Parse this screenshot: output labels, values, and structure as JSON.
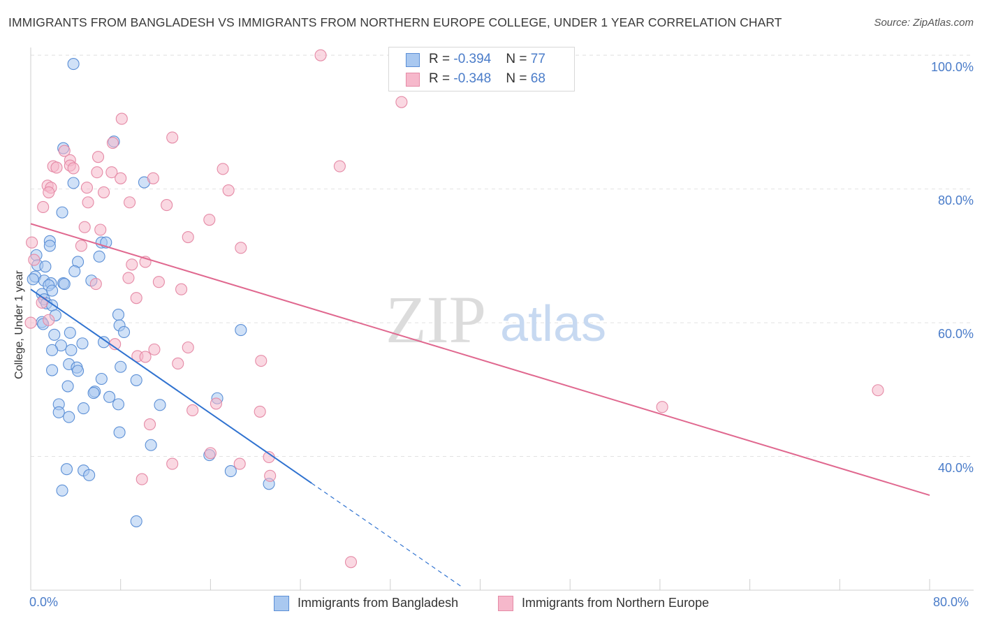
{
  "header": {
    "title": "IMMIGRANTS FROM BANGLADESH VS IMMIGRANTS FROM NORTHERN EUROPE COLLEGE, UNDER 1 YEAR CORRELATION CHART",
    "source": "Source: ZipAtlas.com"
  },
  "legend_top": {
    "rows": [
      {
        "r_label": "R = ",
        "r_value": "-0.394",
        "n_label": "N = ",
        "n_value": "77"
      },
      {
        "r_label": "R = ",
        "r_value": "-0.348",
        "n_label": "N = ",
        "n_value": "68"
      }
    ]
  },
  "watermark": {
    "zip": "ZIP",
    "atlas": "atlas"
  },
  "colors": {
    "blue_fill": "#a9c8f0",
    "blue_stroke": "#5b8fd6",
    "blue_line": "#2f72d0",
    "pink_fill": "#f6b8cb",
    "pink_stroke": "#e58aa6",
    "pink_line": "#e0688f",
    "tick_text": "#4a7cc9",
    "grid": "#e2e2e2"
  },
  "chart_data": {
    "type": "scatter",
    "title": "IMMIGRANTS FROM BANGLADESH VS IMMIGRANTS FROM NORTHERN EUROPE COLLEGE, UNDER 1 YEAR CORRELATION CHART",
    "xlabel": "",
    "ylabel": "College, Under 1 year",
    "xlim": [
      0,
      80
    ],
    "ylim": [
      20,
      102
    ],
    "x_tick_labels": [
      "0.0%",
      "80.0%"
    ],
    "y_tick_labels": [
      "40.0%",
      "60.0%",
      "80.0%",
      "100.0%"
    ],
    "y_ticks": [
      40,
      60,
      80,
      100
    ],
    "grid": true,
    "legend_position": "bottom",
    "series": [
      {
        "name": "Immigrants from Bangladesh",
        "color": "#a9c8f0",
        "points": [
          [
            3.8,
            98.7
          ],
          [
            2.9,
            86.1
          ],
          [
            7.4,
            87.1
          ],
          [
            10.1,
            81.0
          ],
          [
            3.8,
            80.9
          ],
          [
            2.8,
            76.5
          ],
          [
            1.7,
            72.2
          ],
          [
            6.3,
            72.0
          ],
          [
            6.7,
            72.0
          ],
          [
            1.7,
            71.5
          ],
          [
            0.5,
            70.1
          ],
          [
            6.1,
            69.9
          ],
          [
            4.2,
            69.1
          ],
          [
            0.6,
            68.6
          ],
          [
            1.3,
            68.4
          ],
          [
            3.9,
            67.7
          ],
          [
            0.4,
            66.9
          ],
          [
            0.2,
            66.5
          ],
          [
            1.2,
            66.3
          ],
          [
            5.4,
            66.3
          ],
          [
            1.8,
            65.9
          ],
          [
            2.9,
            65.9
          ],
          [
            1.6,
            65.6
          ],
          [
            3.0,
            65.8
          ],
          [
            1.9,
            64.8
          ],
          [
            1.0,
            64.3
          ],
          [
            1.2,
            63.5
          ],
          [
            1.4,
            62.9
          ],
          [
            1.9,
            62.6
          ],
          [
            7.8,
            61.2
          ],
          [
            2.2,
            61.1
          ],
          [
            1.0,
            60.1
          ],
          [
            1.1,
            59.8
          ],
          [
            7.9,
            59.6
          ],
          [
            18.7,
            58.9
          ],
          [
            8.3,
            58.6
          ],
          [
            3.5,
            58.5
          ],
          [
            2.1,
            58.2
          ],
          [
            6.5,
            57.1
          ],
          [
            4.6,
            56.9
          ],
          [
            2.7,
            56.6
          ],
          [
            1.9,
            55.9
          ],
          [
            3.6,
            55.9
          ],
          [
            3.4,
            53.8
          ],
          [
            4.1,
            53.3
          ],
          [
            8.0,
            53.4
          ],
          [
            1.9,
            52.9
          ],
          [
            4.2,
            52.8
          ],
          [
            6.3,
            51.6
          ],
          [
            9.4,
            51.4
          ],
          [
            3.3,
            50.5
          ],
          [
            5.7,
            49.7
          ],
          [
            5.6,
            49.5
          ],
          [
            7.0,
            48.9
          ],
          [
            16.6,
            48.7
          ],
          [
            2.5,
            47.8
          ],
          [
            7.8,
            47.8
          ],
          [
            11.5,
            47.7
          ],
          [
            4.7,
            47.2
          ],
          [
            2.5,
            46.6
          ],
          [
            3.4,
            45.9
          ],
          [
            7.9,
            43.6
          ],
          [
            10.7,
            41.7
          ],
          [
            15.9,
            40.2
          ],
          [
            3.2,
            38.1
          ],
          [
            4.7,
            37.9
          ],
          [
            5.2,
            37.2
          ],
          [
            17.8,
            37.8
          ],
          [
            21.2,
            35.9
          ],
          [
            2.8,
            34.9
          ],
          [
            9.4,
            30.3
          ]
        ]
      },
      {
        "name": "Immigrants from Northern Europe",
        "color": "#f6b8cb",
        "points": [
          [
            25.8,
            100.0
          ],
          [
            33.0,
            93.0
          ],
          [
            8.1,
            90.5
          ],
          [
            12.6,
            87.7
          ],
          [
            7.3,
            86.9
          ],
          [
            3.0,
            85.7
          ],
          [
            6.0,
            84.8
          ],
          [
            3.5,
            84.3
          ],
          [
            3.5,
            83.5
          ],
          [
            2.0,
            83.4
          ],
          [
            2.3,
            83.2
          ],
          [
            3.8,
            83.1
          ],
          [
            17.1,
            83.0
          ],
          [
            27.5,
            83.4
          ],
          [
            5.9,
            82.5
          ],
          [
            7.2,
            82.5
          ],
          [
            8.0,
            81.6
          ],
          [
            10.9,
            81.6
          ],
          [
            1.5,
            80.5
          ],
          [
            1.8,
            80.2
          ],
          [
            5.0,
            80.2
          ],
          [
            17.6,
            79.8
          ],
          [
            1.6,
            79.5
          ],
          [
            6.5,
            79.5
          ],
          [
            5.1,
            78.0
          ],
          [
            8.8,
            78.0
          ],
          [
            12.1,
            77.6
          ],
          [
            1.1,
            77.3
          ],
          [
            15.9,
            75.4
          ],
          [
            4.8,
            74.3
          ],
          [
            6.2,
            73.9
          ],
          [
            14.0,
            72.8
          ],
          [
            0.1,
            72.0
          ],
          [
            4.5,
            71.5
          ],
          [
            18.7,
            71.2
          ],
          [
            0.3,
            69.4
          ],
          [
            10.2,
            69.1
          ],
          [
            9.0,
            68.7
          ],
          [
            8.7,
            66.7
          ],
          [
            11.4,
            66.1
          ],
          [
            5.8,
            65.8
          ],
          [
            13.4,
            65.0
          ],
          [
            9.4,
            63.7
          ],
          [
            1.0,
            63.0
          ],
          [
            1.6,
            60.4
          ],
          [
            0.0,
            60.0
          ],
          [
            7.5,
            56.8
          ],
          [
            14.0,
            56.3
          ],
          [
            11.0,
            56.0
          ],
          [
            9.5,
            55.0
          ],
          [
            10.2,
            54.9
          ],
          [
            20.5,
            54.3
          ],
          [
            13.1,
            53.9
          ],
          [
            75.4,
            49.9
          ],
          [
            16.5,
            47.9
          ],
          [
            56.2,
            47.4
          ],
          [
            14.4,
            46.9
          ],
          [
            20.4,
            46.7
          ],
          [
            10.6,
            44.8
          ],
          [
            16.0,
            40.5
          ],
          [
            21.2,
            39.9
          ],
          [
            18.6,
            38.9
          ],
          [
            12.6,
            38.9
          ],
          [
            21.3,
            37.1
          ],
          [
            9.9,
            36.6
          ],
          [
            28.5,
            24.2
          ]
        ]
      }
    ],
    "trend_lines": [
      {
        "series": "Immigrants from Bangladesh",
        "x1": 0,
        "y1": 65.0,
        "x2": 25,
        "y2": 36.0,
        "dashed_to_x": 38.5
      },
      {
        "series": "Immigrants from Northern Europe",
        "x1": 0,
        "y1": 74.8,
        "x2": 80,
        "y2": 34.2
      }
    ],
    "annotations": [
      {
        "text": "R = -0.394  N = 77",
        "series": "Immigrants from Bangladesh"
      },
      {
        "text": "R = -0.348  N = 68",
        "series": "Immigrants from Northern Europe"
      }
    ]
  },
  "legend_bottom": {
    "items": [
      {
        "label": "Immigrants from Bangladesh"
      },
      {
        "label": "Immigrants from Northern Europe"
      }
    ]
  }
}
